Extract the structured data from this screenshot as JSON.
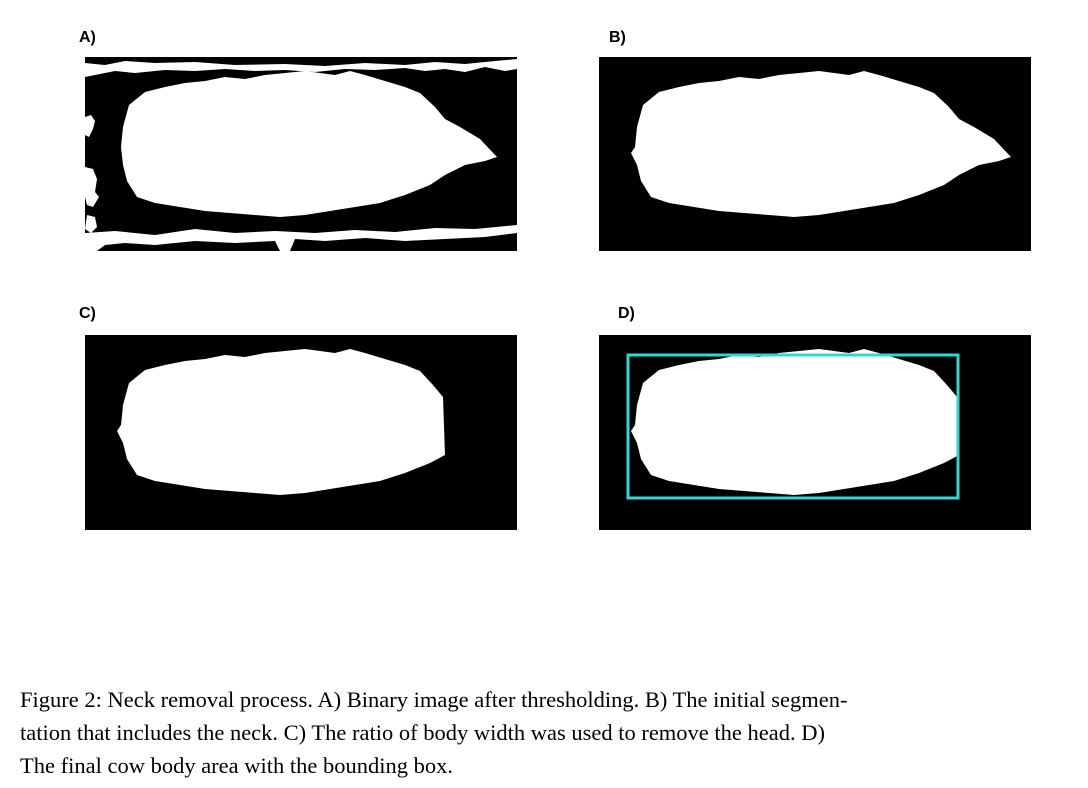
{
  "figure": {
    "panels": [
      {
        "label": "A)"
      },
      {
        "label": "B)"
      },
      {
        "label": "C)"
      },
      {
        "label": "D)"
      }
    ],
    "caption_lines": [
      "Figure 2: Neck removal process. A) Binary image after thresholding. B) The initial segmen-",
      "tation that includes the neck. C) The ratio of body width was used to remove the head. D)",
      "The final cow body area with the bounding box."
    ],
    "colors": {
      "background": "#000000",
      "foreground": "#ffffff",
      "bounding_box": "#33d6d6"
    }
  }
}
